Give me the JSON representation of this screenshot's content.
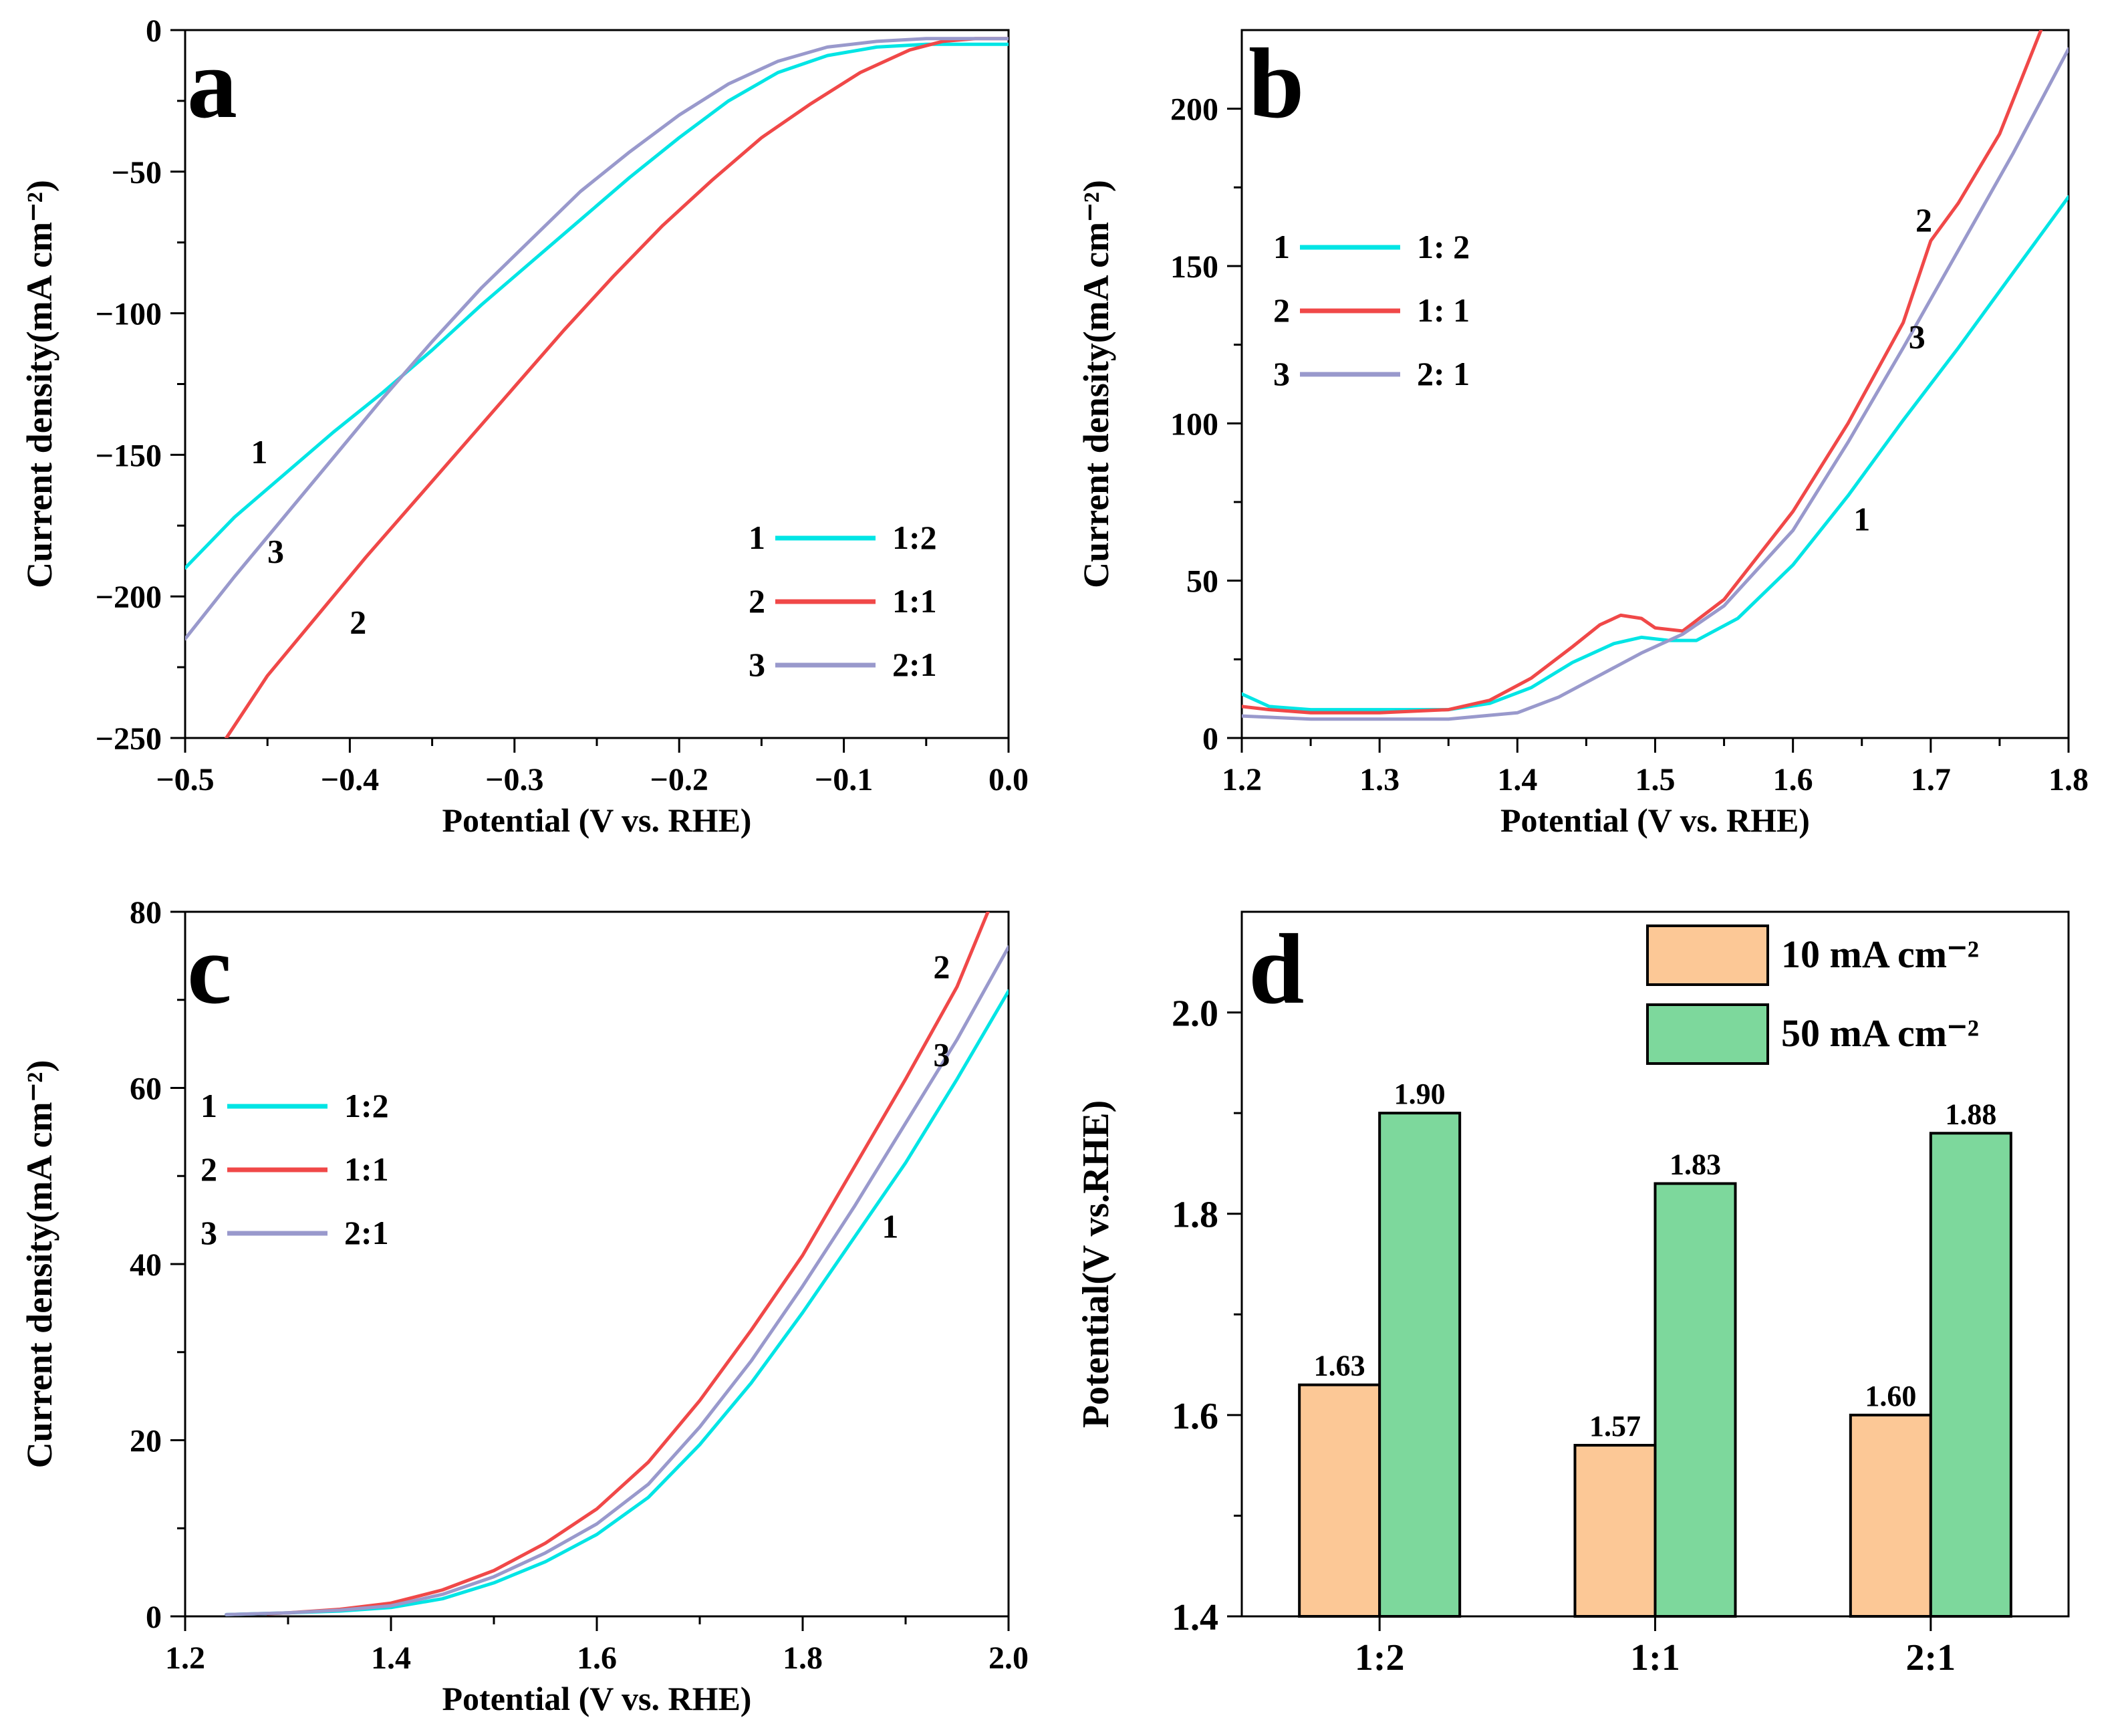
{
  "chart_data": [
    {
      "panel": "a",
      "type": "line",
      "xlabel": "Potential (V vs. RHE)",
      "ylabel": "Current density(mA cm⁻²)",
      "xlim": [
        -0.5,
        0.0
      ],
      "ylim": [
        -250,
        0
      ],
      "xticks": [
        -0.5,
        -0.4,
        -0.3,
        -0.2,
        -0.1,
        0.0
      ],
      "xtick_labels": [
        "−0.5",
        "−0.4",
        "−0.3",
        "−0.2",
        "−0.1",
        "0.0"
      ],
      "yticks": [
        -250,
        -200,
        -150,
        -100,
        -50,
        0
      ],
      "ytick_labels": [
        "−250",
        "−200",
        "−150",
        "−100",
        "−50",
        "0"
      ],
      "legend": "lower-right",
      "series": [
        {
          "id": "1",
          "name": "1:2",
          "color": "#00e5e5",
          "x": [
            -0.5,
            -0.47,
            -0.44,
            -0.41,
            -0.38,
            -0.35,
            -0.32,
            -0.29,
            -0.26,
            -0.23,
            -0.2,
            -0.17,
            -0.14,
            -0.11,
            -0.08,
            -0.05,
            -0.02,
            0.0
          ],
          "y": [
            -190,
            -172,
            -157,
            -142,
            -128,
            -113,
            -97,
            -82,
            -67,
            -52,
            -38,
            -25,
            -15,
            -9,
            -6,
            -5,
            -5,
            -5
          ]
        },
        {
          "id": "2",
          "name": "1:1",
          "color": "#f04848",
          "x": [
            -0.475,
            -0.45,
            -0.42,
            -0.39,
            -0.36,
            -0.33,
            -0.3,
            -0.27,
            -0.24,
            -0.21,
            -0.18,
            -0.15,
            -0.12,
            -0.09,
            -0.06,
            -0.04,
            -0.02,
            0.0
          ],
          "y": [
            -250,
            -228,
            -207,
            -186,
            -166,
            -146,
            -126,
            -106,
            -87,
            -69,
            -53,
            -38,
            -26,
            -15,
            -7,
            -4,
            -3,
            -3
          ]
        },
        {
          "id": "3",
          "name": "2:1",
          "color": "#9999cc",
          "x": [
            -0.5,
            -0.47,
            -0.44,
            -0.41,
            -0.38,
            -0.35,
            -0.32,
            -0.29,
            -0.26,
            -0.23,
            -0.2,
            -0.17,
            -0.14,
            -0.11,
            -0.08,
            -0.05,
            -0.02,
            0.0
          ],
          "y": [
            -215,
            -193,
            -172,
            -151,
            -130,
            -110,
            -91,
            -74,
            -57,
            -43,
            -30,
            -19,
            -11,
            -6,
            -4,
            -3,
            -3,
            -3
          ]
        }
      ],
      "curve_labels": [
        {
          "text": "1",
          "x": -0.455,
          "y": -153
        },
        {
          "text": "3",
          "x": -0.445,
          "y": -188
        },
        {
          "text": "2",
          "x": -0.395,
          "y": -213
        }
      ],
      "legend_entries": [
        {
          "num": "1",
          "label": "1:2"
        },
        {
          "num": "2",
          "label": "1:1"
        },
        {
          "num": "3",
          "label": "2:1"
        }
      ]
    },
    {
      "panel": "b",
      "type": "line",
      "xlabel": "Potential (V vs. RHE)",
      "ylabel": "Current density(mA cm⁻²)",
      "xlim": [
        1.2,
        1.8
      ],
      "ylim": [
        0,
        225
      ],
      "xticks": [
        1.2,
        1.3,
        1.4,
        1.5,
        1.6,
        1.7,
        1.8
      ],
      "xtick_labels": [
        "1.2",
        "1.3",
        "1.4",
        "1.5",
        "1.6",
        "1.7",
        "1.8"
      ],
      "yticks": [
        0,
        50,
        100,
        150,
        200
      ],
      "ytick_labels": [
        "0",
        "50",
        "100",
        "150",
        "200"
      ],
      "legend": "upper-left",
      "series": [
        {
          "id": "1",
          "name": "1:2",
          "color": "#00e5e5",
          "x": [
            1.2,
            1.22,
            1.25,
            1.3,
            1.35,
            1.38,
            1.41,
            1.44,
            1.47,
            1.49,
            1.51,
            1.53,
            1.56,
            1.6,
            1.64,
            1.68,
            1.72,
            1.76,
            1.8
          ],
          "y": [
            14,
            10,
            9,
            9,
            9,
            11,
            16,
            24,
            30,
            32,
            31,
            31,
            38,
            55,
            77,
            101,
            124,
            148,
            172
          ]
        },
        {
          "id": "2",
          "name": "1:1",
          "color": "#f04848",
          "x": [
            1.2,
            1.22,
            1.25,
            1.3,
            1.35,
            1.38,
            1.41,
            1.44,
            1.46,
            1.475,
            1.49,
            1.5,
            1.52,
            1.55,
            1.6,
            1.64,
            1.68,
            1.7,
            1.72,
            1.75,
            1.78
          ],
          "y": [
            10,
            9,
            8,
            8,
            9,
            12,
            19,
            29,
            36,
            39,
            38,
            35,
            34,
            44,
            72,
            100,
            132,
            158,
            170,
            192,
            225
          ]
        },
        {
          "id": "3",
          "name": "2:1",
          "color": "#9999cc",
          "x": [
            1.2,
            1.25,
            1.3,
            1.35,
            1.4,
            1.43,
            1.46,
            1.49,
            1.52,
            1.55,
            1.6,
            1.64,
            1.68,
            1.72,
            1.76,
            1.8
          ],
          "y": [
            7,
            6,
            6,
            6,
            8,
            13,
            20,
            27,
            33,
            42,
            66,
            94,
            124,
            155,
            186,
            219
          ]
        }
      ],
      "curve_labels": [
        {
          "text": "2",
          "x": 1.695,
          "y": 161
        },
        {
          "text": "3",
          "x": 1.69,
          "y": 124
        },
        {
          "text": "1",
          "x": 1.65,
          "y": 66
        }
      ],
      "legend_entries": [
        {
          "num": "1",
          "label": "1: 2"
        },
        {
          "num": "2",
          "label": "1: 1"
        },
        {
          "num": "3",
          "label": "2: 1"
        }
      ]
    },
    {
      "panel": "c",
      "type": "line",
      "xlabel": "Potential (V vs. RHE)",
      "ylabel": "Current density(mA cm⁻²)",
      "xlim": [
        1.2,
        2.0
      ],
      "ylim": [
        0,
        80
      ],
      "xticks": [
        1.2,
        1.4,
        1.6,
        1.8,
        2.0
      ],
      "xtick_labels": [
        "1.2",
        "1.4",
        "1.6",
        "1.8",
        "2.0"
      ],
      "yticks": [
        0,
        20,
        40,
        60,
        80
      ],
      "ytick_labels": [
        "0",
        "20",
        "40",
        "60",
        "80"
      ],
      "legend": "upper-left",
      "series": [
        {
          "id": "1",
          "name": "1:2",
          "color": "#00e5e5",
          "x": [
            1.24,
            1.3,
            1.35,
            1.4,
            1.45,
            1.5,
            1.55,
            1.6,
            1.65,
            1.7,
            1.75,
            1.8,
            1.85,
            1.9,
            1.95,
            2.0
          ],
          "y": [
            0.2,
            0.4,
            0.6,
            1.0,
            2.0,
            3.8,
            6.2,
            9.3,
            13.5,
            19.5,
            26.5,
            34.5,
            43.0,
            51.5,
            61.0,
            71.0
          ]
        },
        {
          "id": "2",
          "name": "1:1",
          "color": "#f04848",
          "x": [
            1.28,
            1.3,
            1.35,
            1.4,
            1.45,
            1.5,
            1.55,
            1.6,
            1.65,
            1.7,
            1.75,
            1.8,
            1.85,
            1.9,
            1.95,
            1.98
          ],
          "y": [
            0.3,
            0.4,
            0.8,
            1.5,
            3.0,
            5.2,
            8.3,
            12.2,
            17.5,
            24.5,
            32.5,
            41.0,
            51.0,
            61.0,
            71.5,
            80.0
          ]
        },
        {
          "id": "3",
          "name": "2:1",
          "color": "#9999cc",
          "x": [
            1.24,
            1.3,
            1.35,
            1.4,
            1.45,
            1.5,
            1.55,
            1.6,
            1.65,
            1.7,
            1.75,
            1.8,
            1.85,
            1.9,
            1.95,
            2.0
          ],
          "y": [
            0.2,
            0.4,
            0.7,
            1.2,
            2.5,
            4.5,
            7.2,
            10.5,
            15.0,
            21.5,
            29.0,
            37.5,
            46.5,
            56.0,
            65.5,
            76.0
          ]
        }
      ],
      "curve_labels": [
        {
          "text": "2",
          "x": 1.935,
          "y": 72.5
        },
        {
          "text": "3",
          "x": 1.935,
          "y": 62.5
        },
        {
          "text": "1",
          "x": 1.885,
          "y": 43
        }
      ],
      "legend_entries": [
        {
          "num": "1",
          "label": "1:2"
        },
        {
          "num": "2",
          "label": "1:1"
        },
        {
          "num": "3",
          "label": "2:1"
        }
      ]
    },
    {
      "panel": "d",
      "type": "bar",
      "xlabel": "",
      "ylabel": "Potential(V vs.RHE)",
      "ylim": [
        1.4,
        2.1
      ],
      "yticks": [
        1.4,
        1.6,
        1.8,
        2.0
      ],
      "ytick_labels": [
        "1.4",
        "1.6",
        "1.8",
        "2.0"
      ],
      "categories": [
        "1:2",
        "1:1",
        "2:1"
      ],
      "legend": "top-right",
      "series": [
        {
          "name": "10 mA cm⁻²",
          "color": "#fcc896",
          "values": [
            1.63,
            1.57,
            1.6
          ],
          "labels": [
            "1.63",
            "1.57",
            "1.60"
          ]
        },
        {
          "name": "50 mA cm⁻²",
          "color": "#7dd89c",
          "values": [
            1.9,
            1.83,
            1.88
          ],
          "labels": [
            "1.90",
            "1.83",
            "1.88"
          ]
        }
      ]
    }
  ]
}
